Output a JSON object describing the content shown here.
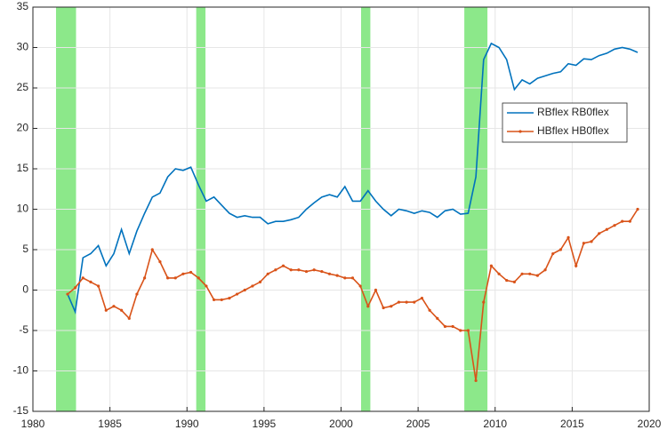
{
  "chart_data": {
    "type": "line",
    "x": [
      1982.25,
      1982.75,
      1983.25,
      1983.75,
      1984.25,
      1984.75,
      1985.25,
      1985.75,
      1986.25,
      1986.75,
      1987.25,
      1987.75,
      1988.25,
      1988.75,
      1989.25,
      1989.75,
      1990.25,
      1990.75,
      1991.25,
      1991.75,
      1992.25,
      1992.75,
      1993.25,
      1993.75,
      1994.25,
      1994.75,
      1995.25,
      1995.75,
      1996.25,
      1996.75,
      1997.25,
      1997.75,
      1998.25,
      1998.75,
      1999.25,
      1999.75,
      2000.25,
      2000.75,
      2001.25,
      2001.75,
      2002.25,
      2002.75,
      2003.25,
      2003.75,
      2004.25,
      2004.75,
      2005.25,
      2005.75,
      2006.25,
      2006.75,
      2007.25,
      2007.75,
      2008.25,
      2008.75,
      2009.25,
      2009.75,
      2010.25,
      2010.75,
      2011.25,
      2011.75,
      2012.25,
      2012.75,
      2013.25,
      2013.75,
      2014.25,
      2014.75,
      2015.25,
      2015.75,
      2016.25,
      2016.75,
      2017.25,
      2017.75,
      2018.25,
      2018.75,
      2019.25
    ],
    "series": [
      {
        "name": "RBflex RB0flex",
        "color": "#0072BD",
        "marker": "none",
        "values": [
          -0.5,
          -2.7,
          4.0,
          4.5,
          5.5,
          3.0,
          4.5,
          7.5,
          4.5,
          7.3,
          9.5,
          11.5,
          12.0,
          14.0,
          15.0,
          14.8,
          15.2,
          13.0,
          11.0,
          11.5,
          10.5,
          9.5,
          9.0,
          9.2,
          9.0,
          9.0,
          8.2,
          8.5,
          8.5,
          8.7,
          9.0,
          10.0,
          10.8,
          11.5,
          11.8,
          11.5,
          12.8,
          11.0,
          11.0,
          12.3,
          11.0,
          10.0,
          9.2,
          10.0,
          9.8,
          9.5,
          9.8,
          9.6,
          9.0,
          9.8,
          10.0,
          9.4,
          9.5,
          14.0,
          28.5,
          30.5,
          30.0,
          28.5,
          24.8,
          26.0,
          25.5,
          26.2,
          26.5,
          26.8,
          27.0,
          28.0,
          27.8,
          28.6,
          28.5,
          29.0,
          29.3,
          29.8,
          30.0,
          29.8,
          29.4
        ]
      },
      {
        "name": "HBflex HB0flex",
        "color": "#D95319",
        "marker": "dot",
        "values": [
          -0.5,
          0.3,
          1.5,
          1.0,
          0.5,
          -2.5,
          -2.0,
          -2.5,
          -3.5,
          -0.5,
          1.5,
          5.0,
          3.5,
          1.5,
          1.5,
          2.0,
          2.2,
          1.5,
          0.5,
          -1.2,
          -1.2,
          -1.0,
          -0.5,
          0.0,
          0.5,
          1.0,
          2.0,
          2.5,
          3.0,
          2.5,
          2.5,
          2.3,
          2.5,
          2.3,
          2.0,
          1.8,
          1.5,
          1.5,
          0.5,
          -2.0,
          0.0,
          -2.2,
          -2.0,
          -1.5,
          -1.5,
          -1.5,
          -1.0,
          -2.5,
          -3.5,
          -4.5,
          -4.5,
          -5.0,
          -5.0,
          -11.2,
          -1.5,
          3.0,
          2.0,
          1.2,
          1.0,
          2.0,
          2.0,
          1.8,
          2.5,
          4.5,
          5.0,
          6.5,
          3.0,
          5.8,
          6.0,
          7.0,
          7.5,
          8.0,
          8.5,
          8.5,
          10.0
        ]
      }
    ],
    "shaded_regions": [
      [
        1981.5,
        1982.8
      ],
      [
        1990.6,
        1991.2
      ],
      [
        2001.3,
        2001.9
      ],
      [
        2008.0,
        2009.5
      ]
    ],
    "shade_color": "#8ce88a",
    "xlim": [
      1980,
      2020
    ],
    "xticks": [
      1980,
      1985,
      1990,
      1995,
      2000,
      2005,
      2010,
      2015,
      2020
    ],
    "ylim": [
      -15,
      35
    ],
    "yticks": [
      -15,
      -10,
      -5,
      0,
      5,
      10,
      15,
      20,
      25,
      30,
      35
    ],
    "grid": true,
    "legend": "right"
  }
}
